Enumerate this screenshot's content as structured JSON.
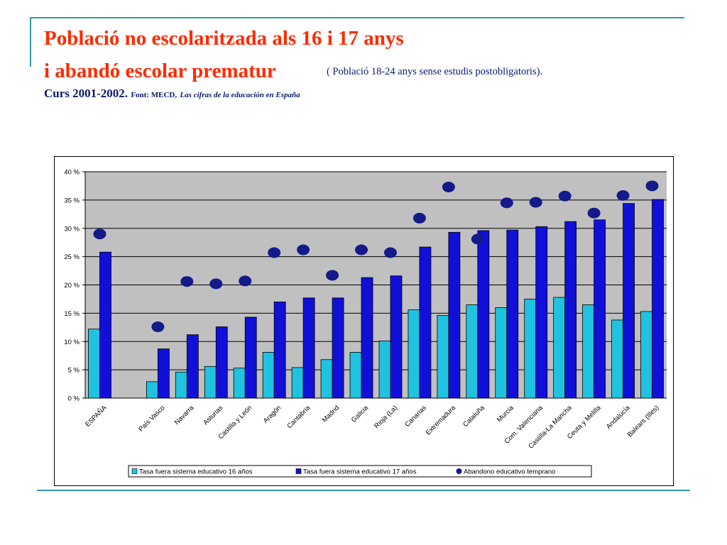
{
  "header": {
    "title_line1": "Població no escolaritzada als 16 i 17 anys",
    "title_line2": "i abandó escolar prematur",
    "subtitle": "( Població 18-24 anys sense estudis postobligatoris).",
    "course": "Curs 2001-2002.",
    "source_label": "Font: MECD,",
    "source_ref": "Las cifras de la educación en España"
  },
  "colors": {
    "title": "#ff2a00",
    "text": "#0c1a6e",
    "bar16": "#1fc3e0",
    "bar17": "#1010d8",
    "dot": "#141a8a",
    "plot_bg": "#c0c0c0",
    "accent_line": "#2e9aa6"
  },
  "chart_data": {
    "type": "bar",
    "title": "",
    "xlabel": "",
    "ylabel": "",
    "ylim": [
      0,
      40
    ],
    "y_ticks": [
      "0 %",
      "5 %",
      "10 %",
      "15 %",
      "20 %",
      "25 %",
      "30 %",
      "35 %",
      "40 %"
    ],
    "grid": true,
    "legend_position": "bottom",
    "categories": [
      "ESPAÑA",
      "",
      "País Vasco",
      "Navarra",
      "Asturias",
      "Castilla y León",
      "Aragón",
      "Cantabria",
      "Madrid",
      "Galicia",
      "Rioja (La)",
      "Canarias",
      "Extremadura",
      "Cataluña",
      "Murcia",
      "Com. Valenciana",
      "Castilla-La Mancha",
      "Ceuta y Melilla",
      "Andalucía",
      "Balears (Illes)"
    ],
    "series": [
      {
        "name": "Tasa fuera sistema educativo 16 años",
        "type": "bar",
        "values": [
          12.2,
          null,
          2.9,
          4.6,
          5.6,
          5.3,
          8.1,
          5.4,
          6.8,
          8.1,
          10.1,
          15.6,
          14.6,
          16.5,
          16.0,
          17.5,
          17.8,
          16.5,
          13.8,
          15.3
        ]
      },
      {
        "name": "Tasa fuera sistema educativo 17 años",
        "type": "bar",
        "values": [
          25.8,
          null,
          8.7,
          11.2,
          12.6,
          14.3,
          17.0,
          17.7,
          17.7,
          21.3,
          21.6,
          26.7,
          29.3,
          29.6,
          29.7,
          30.3,
          31.2,
          31.5,
          34.4,
          35.1
        ]
      },
      {
        "name": "Abandono educativo temprano",
        "type": "scatter",
        "values": [
          29.0,
          null,
          12.6,
          20.6,
          20.2,
          20.7,
          25.7,
          26.2,
          21.7,
          26.2,
          25.7,
          31.8,
          37.3,
          28.1,
          34.5,
          34.6,
          35.7,
          32.7,
          35.8,
          37.5
        ]
      }
    ]
  }
}
